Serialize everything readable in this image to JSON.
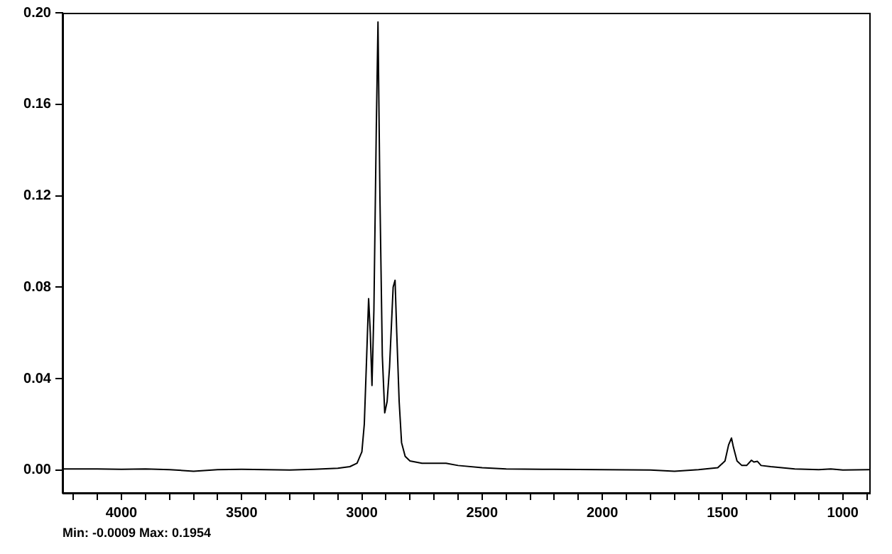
{
  "chart_data": {
    "type": "line",
    "color": "#000000",
    "x": [
      4245,
      4100,
      4000,
      3900,
      3800,
      3700,
      3600,
      3500,
      3400,
      3300,
      3200,
      3100,
      3050,
      3020,
      3000,
      2990,
      2980,
      2972,
      2965,
      2958,
      2950,
      2940,
      2933,
      2925,
      2915,
      2905,
      2895,
      2885,
      2870,
      2862,
      2855,
      2845,
      2835,
      2820,
      2800,
      2750,
      2700,
      2650,
      2600,
      2500,
      2400,
      2200,
      2000,
      1800,
      1700,
      1600,
      1520,
      1490,
      1475,
      1463,
      1455,
      1440,
      1420,
      1400,
      1380,
      1370,
      1355,
      1340,
      1300,
      1200,
      1100,
      1050,
      1000,
      890
    ],
    "values": [
      0.0005,
      0.0005,
      0.0003,
      0.0005,
      0.0002,
      -0.0005,
      0.0002,
      0.0003,
      0.0002,
      0.0,
      0.0003,
      0.0008,
      0.0015,
      0.003,
      0.008,
      0.02,
      0.05,
      0.075,
      0.06,
      0.037,
      0.07,
      0.15,
      0.196,
      0.12,
      0.05,
      0.025,
      0.03,
      0.045,
      0.08,
      0.083,
      0.06,
      0.03,
      0.012,
      0.006,
      0.004,
      0.003,
      0.003,
      0.003,
      0.002,
      0.001,
      0.0005,
      0.0003,
      0.0002,
      0.0,
      -0.0005,
      0.0002,
      0.001,
      0.004,
      0.011,
      0.014,
      0.01,
      0.004,
      0.002,
      0.002,
      0.0043,
      0.0035,
      0.0038,
      0.002,
      0.0015,
      0.0005,
      0.0002,
      0.0005,
      0.0,
      0.0002
    ],
    "xlim": [
      4245,
      890
    ],
    "xticks": [
      {
        "value": 4200,
        "label": null
      },
      {
        "value": 4100,
        "label": null
      },
      4000,
      {
        "value": 3900,
        "label": null
      },
      {
        "value": 3800,
        "label": null
      },
      {
        "value": 3700,
        "label": null
      },
      {
        "value": 3600,
        "label": null
      },
      3500,
      {
        "value": 3400,
        "label": null
      },
      {
        "value": 3300,
        "label": null
      },
      {
        "value": 3200,
        "label": null
      },
      {
        "value": 3100,
        "label": null
      },
      3000,
      {
        "value": 2900,
        "label": null
      },
      {
        "value": 2800,
        "label": null
      },
      {
        "value": 2700,
        "label": null
      },
      {
        "value": 2600,
        "label": null
      },
      2500,
      {
        "value": 2400,
        "label": null
      },
      {
        "value": 2300,
        "label": null
      },
      {
        "value": 2200,
        "label": null
      },
      {
        "value": 2100,
        "label": null
      },
      2000,
      {
        "value": 1900,
        "label": null
      },
      {
        "value": 1800,
        "label": null
      },
      {
        "value": 1700,
        "label": null
      },
      {
        "value": 1600,
        "label": null
      },
      1500,
      {
        "value": 1400,
        "label": null
      },
      {
        "value": 1300,
        "label": null
      },
      {
        "value": 1200,
        "label": null
      },
      {
        "value": 1100,
        "label": null
      },
      1000,
      {
        "value": 900,
        "label": null
      }
    ],
    "ylim": [
      -0.01,
      0.2
    ],
    "yticks": [
      {
        "value": 0,
        "label": "0.00"
      },
      0.04,
      0.08,
      0.12,
      0.16,
      {
        "value": 0.2,
        "label": "0.20"
      }
    ],
    "grid": false,
    "legend": false,
    "marker": "none",
    "line_style": "solid",
    "annotations": [
      "Min: -0.0009  Max: 0.1954"
    ]
  }
}
